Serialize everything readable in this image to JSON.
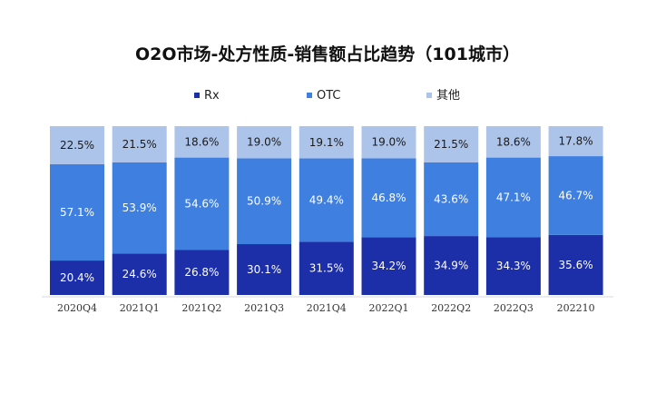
{
  "chart_data": {
    "type": "bar",
    "stacked": true,
    "title": "O2O市场-处方性质-销售额占比趋势（101城市）",
    "categories": [
      "2020Q4",
      "2021Q1",
      "2021Q2",
      "2021Q3",
      "2021Q4",
      "2022Q1",
      "2022Q2",
      "2022Q3",
      "202210"
    ],
    "series": [
      {
        "name": "Rx",
        "color": "#1c2fa8",
        "values": [
          20.4,
          24.6,
          26.8,
          30.1,
          31.5,
          34.2,
          34.9,
          34.3,
          35.6
        ],
        "labels": [
          "20.4%",
          "24.6%",
          "26.8%",
          "30.1%",
          "31.5%",
          "34.2%",
          "34.9%",
          "34.3%",
          "35.6%"
        ]
      },
      {
        "name": "OTC",
        "color": "#3f7fdf",
        "values": [
          57.1,
          53.9,
          54.6,
          50.9,
          49.4,
          46.8,
          43.6,
          47.1,
          46.7
        ],
        "labels": [
          "57.1%",
          "53.9%",
          "54.6%",
          "50.9%",
          "49.4%",
          "46.8%",
          "43.6%",
          "47.1%",
          "46.7%"
        ]
      },
      {
        "name": "其他",
        "color": "#adc4ea",
        "values": [
          22.5,
          21.5,
          18.6,
          19.0,
          19.1,
          19.0,
          21.5,
          18.6,
          17.8
        ],
        "labels": [
          "22.5%",
          "21.5%",
          "18.6%",
          "19.0%",
          "19.1%",
          "19.0%",
          "21.5%",
          "18.6%",
          "17.8%"
        ]
      }
    ],
    "ylim": [
      0,
      100
    ],
    "grid": false,
    "legend": "top-center"
  }
}
